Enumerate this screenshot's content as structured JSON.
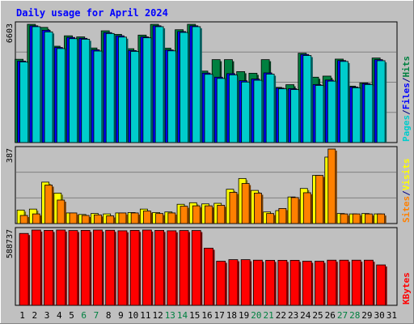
{
  "chart_data": [
    {
      "type": "bar",
      "title": "Daily usage for April 2024",
      "ymax_label": "6603",
      "right_labels": [
        {
          "text": "Pages",
          "color": "#00cccc"
        },
        {
          "text": "/",
          "color": "#000080"
        },
        {
          "text": "Files",
          "color": "#0000ff"
        },
        {
          "text": "/",
          "color": "#000080"
        },
        {
          "text": "Hits",
          "color": "#008040"
        }
      ],
      "categories": [
        "1",
        "2",
        "3",
        "4",
        "5",
        "6",
        "7",
        "8",
        "9",
        "10",
        "11",
        "12",
        "13",
        "14",
        "15",
        "16",
        "17",
        "18",
        "19",
        "20",
        "21",
        "22",
        "23",
        "24",
        "25",
        "26",
        "27",
        "28",
        "29",
        "30",
        "31"
      ],
      "series": [
        {
          "name": "Hits",
          "color": "#008040",
          "values": [
            4650,
            6603,
            6430,
            5380,
            5960,
            5900,
            5280,
            6240,
            6040,
            5240,
            6000,
            6603,
            5270,
            6300,
            6603,
            3990,
            4630,
            4630,
            3960,
            3870,
            4630,
            3080,
            3230,
            4990,
            3650,
            3710,
            4660,
            3150,
            3330,
            4720,
            0
          ]
        },
        {
          "name": "Files",
          "color": "#0000ff",
          "values": [
            4550,
            6520,
            6270,
            5310,
            5870,
            5820,
            5180,
            6140,
            5960,
            5140,
            5900,
            6520,
            5170,
            6200,
            6520,
            3880,
            3650,
            3850,
            3450,
            3550,
            3890,
            3040,
            3010,
            4920,
            3240,
            3490,
            4580,
            3100,
            3290,
            4630,
            0
          ]
        },
        {
          "name": "Pages",
          "color": "#00cccc",
          "values": [
            4500,
            6470,
            6180,
            5250,
            5800,
            5770,
            5110,
            6090,
            5890,
            5090,
            5850,
            6470,
            5120,
            6150,
            6470,
            3810,
            3580,
            3780,
            3380,
            3480,
            3820,
            3000,
            2960,
            4860,
            3190,
            3430,
            4530,
            3060,
            3240,
            4570,
            0
          ]
        }
      ]
    },
    {
      "type": "bar",
      "ymax_label": "387",
      "right_labels": [
        {
          "text": "Sites",
          "color": "#ff8000"
        },
        {
          "text": "/",
          "color": "#000080"
        },
        {
          "text": "Visits",
          "color": "#ffff00"
        }
      ],
      "categories": [
        "1",
        "2",
        "3",
        "4",
        "5",
        "6",
        "7",
        "8",
        "9",
        "10",
        "11",
        "12",
        "13",
        "14",
        "15",
        "16",
        "17",
        "18",
        "19",
        "20",
        "21",
        "22",
        "23",
        "24",
        "25",
        "26",
        "27",
        "28",
        "29",
        "30",
        "31"
      ],
      "series": [
        {
          "name": "Visits",
          "color": "#ffff00",
          "values": [
            70,
            75,
            215,
            158,
            55,
            47,
            52,
            50,
            55,
            57,
            75,
            57,
            60,
            100,
            108,
            102,
            105,
            178,
            234,
            172,
            60,
            67,
            138,
            182,
            250,
            345,
            52,
            50,
            52,
            50,
            0
          ]
        },
        {
          "name": "Sites",
          "color": "#ff8000",
          "values": [
            42,
            50,
            200,
            122,
            55,
            42,
            45,
            40,
            55,
            55,
            65,
            52,
            55,
            90,
            92,
            92,
            95,
            162,
            208,
            158,
            52,
            78,
            135,
            160,
            250,
            387,
            50,
            50,
            50,
            50,
            0
          ]
        }
      ]
    },
    {
      "type": "bar",
      "ymax_label": "588737",
      "right_labels": [
        {
          "text": "KBytes",
          "color": "#ff0000"
        }
      ],
      "categories": [
        "1",
        "2",
        "3",
        "4",
        "5",
        "6",
        "7",
        "8",
        "9",
        "10",
        "11",
        "12",
        "13",
        "14",
        "15",
        "16",
        "17",
        "18",
        "19",
        "20",
        "21",
        "22",
        "23",
        "24",
        "25",
        "26",
        "27",
        "28",
        "29",
        "30",
        "31"
      ],
      "series": [
        {
          "name": "KBytes",
          "color": "#ff0000",
          "values": [
            562000,
            588737,
            586000,
            588737,
            585000,
            586000,
            588737,
            587000,
            583000,
            586000,
            588737,
            586000,
            583000,
            585000,
            585000,
            447000,
            345000,
            357000,
            357000,
            353000,
            352000,
            352000,
            352000,
            345000,
            345000,
            353000,
            353000,
            353000,
            353000,
            316000,
            0
          ]
        }
      ]
    }
  ],
  "x_axis": {
    "labels": [
      "1",
      "2",
      "3",
      "4",
      "5",
      "6",
      "7",
      "8",
      "9",
      "10",
      "11",
      "12",
      "13",
      "14",
      "15",
      "16",
      "17",
      "18",
      "19",
      "20",
      "21",
      "22",
      "23",
      "24",
      "25",
      "26",
      "27",
      "28",
      "29",
      "30",
      "31"
    ],
    "weekend_days": [
      "6",
      "7",
      "13",
      "14",
      "20",
      "21",
      "27",
      "28"
    ],
    "weekday_color": "#000000",
    "weekend_color": "#008040"
  },
  "colors": {
    "title": "#0000ff",
    "plot_background": "#c0c0c0",
    "frame_background": "#c0c0c0",
    "grid": "#808080"
  }
}
